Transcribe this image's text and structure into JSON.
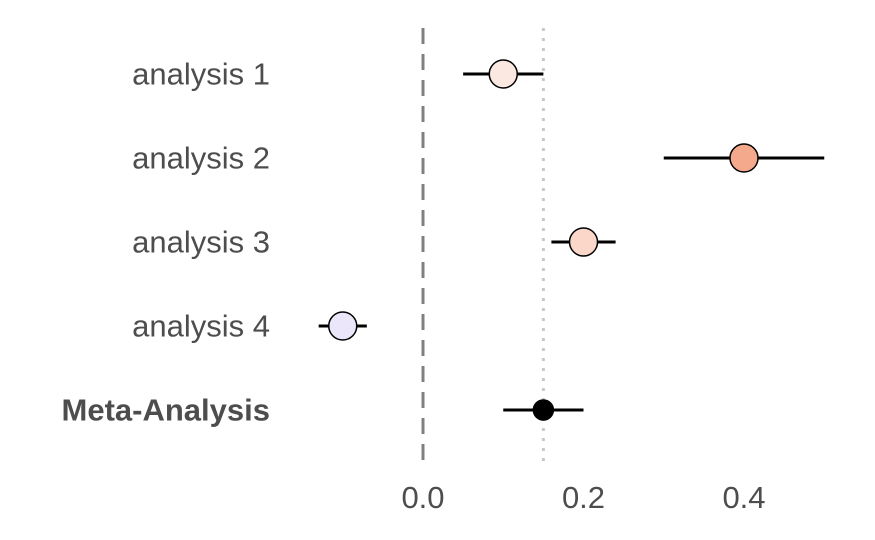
{
  "chart_data": {
    "type": "forest",
    "title": "",
    "xlabel": "",
    "ylabel": "",
    "xlim": [
      -0.16,
      0.52
    ],
    "reference_line": 0.0,
    "summary_line": 0.15,
    "xticks": [
      0.0,
      0.2,
      0.4
    ],
    "xtick_labels": [
      "0.0",
      "0.2",
      "0.4"
    ],
    "rows": [
      {
        "label": "analysis 1",
        "estimate": 0.1,
        "lower": 0.05,
        "upper": 0.15,
        "fill": "#fbe8e0",
        "bold": false
      },
      {
        "label": "analysis 2",
        "estimate": 0.4,
        "lower": 0.3,
        "upper": 0.5,
        "fill": "#f5a98c",
        "bold": false
      },
      {
        "label": "analysis 3",
        "estimate": 0.2,
        "lower": 0.16,
        "upper": 0.24,
        "fill": "#fad7c9",
        "bold": false
      },
      {
        "label": "analysis 4",
        "estimate": -0.1,
        "lower": -0.13,
        "upper": -0.07,
        "fill": "#ece6fb",
        "bold": false
      },
      {
        "label": "Meta-Analysis",
        "estimate": 0.15,
        "lower": 0.1,
        "upper": 0.2,
        "fill": "#000000",
        "bold": true
      }
    ],
    "grid": false,
    "legend": "none"
  }
}
